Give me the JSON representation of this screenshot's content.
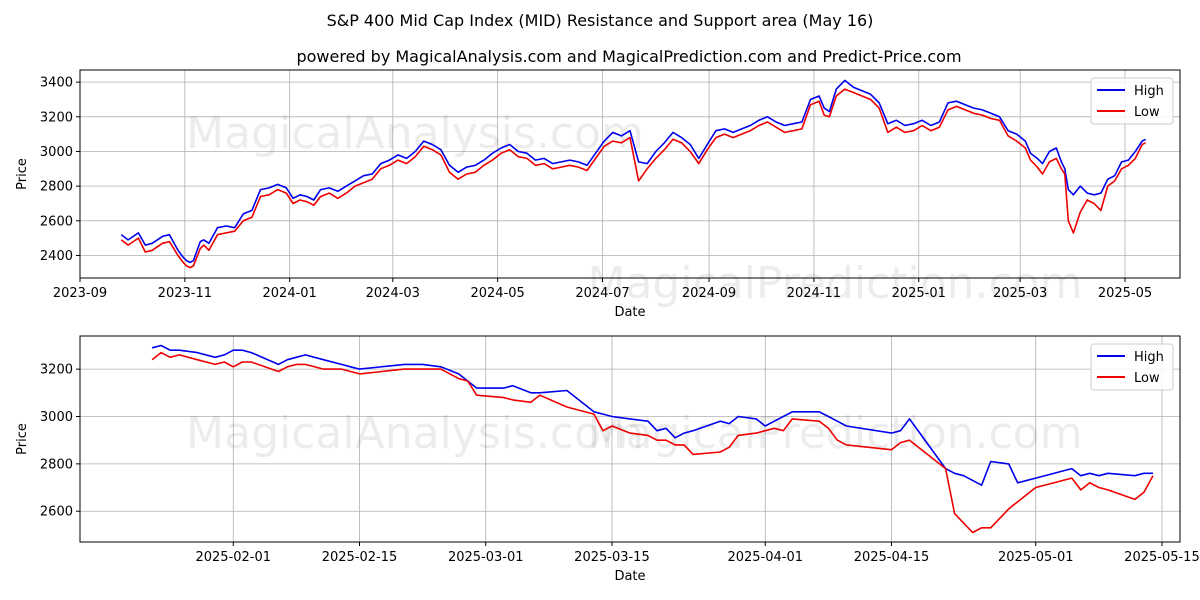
{
  "header": {
    "title": "S&P 400 Mid Cap Index (MID) Resistance and Support area (May 16)",
    "subtitle": "powered by MagicalAnalysis.com and MagicalPrediction.com and Predict-Price.com"
  },
  "watermarks": [
    "MagicalAnalysis.com",
    "MagicalPrediction.com"
  ],
  "colors": {
    "high": "#0000ee",
    "low": "#ee0000",
    "grid": "#b0b0b0"
  },
  "chart_data": [
    {
      "type": "line",
      "xlabel": "Date",
      "ylabel": "Price",
      "xlim": [
        0,
        640
      ],
      "ylim": [
        2270,
        3470
      ],
      "grid": true,
      "legend": "top-right",
      "xticks": [
        {
          "v": 0,
          "label": "2023-09"
        },
        {
          "v": 61,
          "label": "2023-11"
        },
        {
          "v": 122,
          "label": "2024-01"
        },
        {
          "v": 182,
          "label": "2024-03"
        },
        {
          "v": 243,
          "label": "2024-05"
        },
        {
          "v": 304,
          "label": "2024-07"
        },
        {
          "v": 366,
          "label": "2024-09"
        },
        {
          "v": 427,
          "label": "2024-11"
        },
        {
          "v": 488,
          "label": "2025-01"
        },
        {
          "v": 547,
          "label": "2025-03"
        },
        {
          "v": 608,
          "label": "2025-05"
        }
      ],
      "yticks": [
        2400,
        2600,
        2800,
        3000,
        3200,
        3400
      ],
      "series": [
        {
          "name": "High",
          "x": [
            24,
            28,
            34,
            38,
            42,
            48,
            52,
            57,
            60,
            62,
            64,
            66,
            70,
            72,
            75,
            80,
            85,
            90,
            95,
            100,
            105,
            110,
            115,
            120,
            124,
            128,
            132,
            136,
            140,
            145,
            150,
            155,
            160,
            165,
            170,
            175,
            180,
            185,
            190,
            195,
            200,
            205,
            210,
            215,
            220,
            225,
            230,
            235,
            240,
            245,
            250,
            255,
            260,
            265,
            270,
            275,
            280,
            285,
            290,
            295,
            300,
            305,
            310,
            315,
            320,
            325,
            330,
            335,
            340,
            345,
            350,
            355,
            360,
            365,
            370,
            375,
            380,
            385,
            390,
            395,
            400,
            405,
            410,
            415,
            420,
            425,
            430,
            433,
            436,
            440,
            445,
            450,
            455,
            460,
            465,
            470,
            475,
            480,
            485,
            490,
            495,
            500,
            505,
            510,
            515,
            520,
            525,
            530,
            535,
            540,
            545,
            550,
            553,
            557,
            560,
            564,
            568,
            571,
            573,
            575,
            578,
            582,
            586,
            590,
            594,
            598,
            602,
            606,
            610,
            614,
            618,
            620
          ],
          "values": [
            2520,
            2490,
            2530,
            2460,
            2470,
            2510,
            2520,
            2430,
            2390,
            2370,
            2360,
            2370,
            2480,
            2490,
            2470,
            2560,
            2570,
            2560,
            2640,
            2660,
            2780,
            2790,
            2810,
            2790,
            2730,
            2750,
            2740,
            2720,
            2780,
            2790,
            2770,
            2800,
            2830,
            2860,
            2870,
            2930,
            2950,
            2980,
            2960,
            3000,
            3060,
            3040,
            3010,
            2920,
            2880,
            2910,
            2920,
            2950,
            2990,
            3020,
            3040,
            3000,
            2990,
            2950,
            2960,
            2930,
            2940,
            2950,
            2940,
            2920,
            2990,
            3060,
            3110,
            3090,
            3120,
            2940,
            2930,
            3000,
            3050,
            3110,
            3080,
            3040,
            2960,
            3040,
            3120,
            3130,
            3110,
            3130,
            3150,
            3180,
            3200,
            3170,
            3150,
            3160,
            3170,
            3300,
            3320,
            3250,
            3230,
            3360,
            3410,
            3370,
            3350,
            3330,
            3280,
            3160,
            3180,
            3150,
            3160,
            3180,
            3150,
            3170,
            3280,
            3290,
            3270,
            3250,
            3240,
            3220,
            3200,
            3120,
            3100,
            3060,
            2990,
            2960,
            2930,
            3000,
            3020,
            2940,
            2900,
            2780,
            2750,
            2800,
            2760,
            2750,
            2760,
            2840,
            2860,
            2940,
            2950,
            3000,
            3060,
            3070
          ]
        },
        {
          "name": "Low",
          "x": [
            24,
            28,
            34,
            38,
            42,
            48,
            52,
            57,
            60,
            62,
            64,
            66,
            70,
            72,
            75,
            80,
            85,
            90,
            95,
            100,
            105,
            110,
            115,
            120,
            124,
            128,
            132,
            136,
            140,
            145,
            150,
            155,
            160,
            165,
            170,
            175,
            180,
            185,
            190,
            195,
            200,
            205,
            210,
            215,
            220,
            225,
            230,
            235,
            240,
            245,
            250,
            255,
            260,
            265,
            270,
            275,
            280,
            285,
            290,
            295,
            300,
            305,
            310,
            315,
            320,
            325,
            330,
            335,
            340,
            345,
            350,
            355,
            360,
            365,
            370,
            375,
            380,
            385,
            390,
            395,
            400,
            405,
            410,
            415,
            420,
            425,
            430,
            433,
            436,
            440,
            445,
            450,
            455,
            460,
            465,
            470,
            475,
            480,
            485,
            490,
            495,
            500,
            505,
            510,
            515,
            520,
            525,
            530,
            535,
            540,
            545,
            550,
            553,
            557,
            560,
            564,
            568,
            571,
            573,
            575,
            578,
            582,
            586,
            590,
            594,
            598,
            602,
            606,
            610,
            614,
            618,
            620
          ],
          "values": [
            2490,
            2460,
            2500,
            2420,
            2430,
            2470,
            2480,
            2400,
            2360,
            2340,
            2330,
            2340,
            2440,
            2460,
            2430,
            2520,
            2530,
            2540,
            2600,
            2620,
            2740,
            2750,
            2780,
            2760,
            2700,
            2720,
            2710,
            2690,
            2740,
            2760,
            2730,
            2760,
            2800,
            2820,
            2840,
            2900,
            2920,
            2950,
            2930,
            2970,
            3030,
            3010,
            2980,
            2880,
            2840,
            2870,
            2880,
            2920,
            2950,
            2990,
            3010,
            2970,
            2960,
            2920,
            2930,
            2900,
            2910,
            2920,
            2910,
            2890,
            2960,
            3030,
            3060,
            3050,
            3080,
            2830,
            2900,
            2960,
            3010,
            3070,
            3050,
            3000,
            2930,
            3010,
            3080,
            3100,
            3080,
            3100,
            3120,
            3150,
            3170,
            3140,
            3110,
            3120,
            3130,
            3270,
            3290,
            3210,
            3200,
            3320,
            3360,
            3340,
            3320,
            3300,
            3250,
            3110,
            3140,
            3110,
            3120,
            3150,
            3120,
            3140,
            3240,
            3260,
            3240,
            3220,
            3210,
            3190,
            3180,
            3090,
            3060,
            3020,
            2950,
            2910,
            2870,
            2940,
            2960,
            2900,
            2870,
            2600,
            2530,
            2650,
            2720,
            2700,
            2660,
            2800,
            2830,
            2900,
            2920,
            2960,
            3040,
            3050
          ]
        }
      ]
    },
    {
      "type": "line",
      "xlabel": "Date",
      "ylabel": "Price",
      "xlim": [
        -8,
        114
      ],
      "ylim": [
        2470,
        3340
      ],
      "grid": true,
      "legend": "top-right",
      "xticks": [
        {
          "v": 9,
          "label": "2025-02-01"
        },
        {
          "v": 23,
          "label": "2025-02-15"
        },
        {
          "v": 37,
          "label": "2025-03-01"
        },
        {
          "v": 51,
          "label": "2025-03-15"
        },
        {
          "v": 68,
          "label": "2025-04-01"
        },
        {
          "v": 82,
          "label": "2025-04-15"
        },
        {
          "v": 98,
          "label": "2025-05-01"
        },
        {
          "v": 112,
          "label": "2025-05-15"
        }
      ],
      "yticks": [
        2600,
        2800,
        3000,
        3200
      ],
      "series": [
        {
          "name": "High",
          "x": [
            0,
            1,
            2,
            3,
            5,
            7,
            8,
            9,
            10,
            11,
            14,
            15,
            16,
            17,
            19,
            21,
            22,
            23,
            28,
            30,
            32,
            34,
            35,
            36,
            39,
            40,
            42,
            43,
            46,
            49,
            50,
            51,
            53,
            55,
            56,
            57,
            58,
            59,
            60,
            63,
            64,
            65,
            67,
            68,
            69,
            70,
            71,
            74,
            75,
            76,
            77,
            82,
            83,
            84,
            88,
            89,
            90,
            91,
            92,
            93,
            95,
            96,
            98,
            102,
            103,
            104,
            105,
            106,
            109,
            110,
            111
          ],
          "values": [
            3290,
            3300,
            3280,
            3280,
            3270,
            3250,
            3260,
            3280,
            3280,
            3270,
            3220,
            3240,
            3250,
            3260,
            3240,
            3220,
            3210,
            3200,
            3220,
            3220,
            3210,
            3180,
            3150,
            3120,
            3120,
            3130,
            3100,
            3100,
            3110,
            3020,
            3010,
            3000,
            2990,
            2980,
            2940,
            2950,
            2910,
            2930,
            2940,
            2980,
            2970,
            3000,
            2990,
            2960,
            2980,
            3000,
            3020,
            3020,
            3000,
            2980,
            2960,
            2930,
            2940,
            2990,
            2780,
            2760,
            2750,
            2730,
            2710,
            2810,
            2800,
            2720,
            2740,
            2780,
            2750,
            2760,
            2750,
            2760,
            2750,
            2760,
            2760
          ]
        },
        {
          "name": "Low",
          "x": [
            0,
            1,
            2,
            3,
            5,
            7,
            8,
            9,
            10,
            11,
            14,
            15,
            16,
            17,
            19,
            21,
            22,
            23,
            28,
            30,
            32,
            34,
            35,
            36,
            39,
            40,
            42,
            43,
            46,
            49,
            50,
            51,
            53,
            55,
            56,
            57,
            58,
            59,
            60,
            63,
            64,
            65,
            67,
            68,
            69,
            70,
            71,
            74,
            75,
            76,
            77,
            82,
            83,
            84,
            88,
            89,
            90,
            91,
            92,
            93,
            95,
            96,
            98,
            102,
            103,
            104,
            105,
            106,
            109,
            110,
            111
          ],
          "values": [
            3240,
            3270,
            3250,
            3260,
            3240,
            3220,
            3230,
            3210,
            3230,
            3230,
            3190,
            3210,
            3220,
            3220,
            3200,
            3200,
            3190,
            3180,
            3200,
            3200,
            3200,
            3160,
            3150,
            3090,
            3080,
            3070,
            3060,
            3090,
            3040,
            3010,
            2940,
            2960,
            2930,
            2920,
            2900,
            2900,
            2880,
            2880,
            2840,
            2850,
            2870,
            2920,
            2930,
            2940,
            2950,
            2940,
            2990,
            2980,
            2950,
            2900,
            2880,
            2860,
            2890,
            2900,
            2780,
            2590,
            2550,
            2510,
            2530,
            2530,
            2610,
            2640,
            2700,
            2740,
            2690,
            2720,
            2700,
            2690,
            2650,
            2680,
            2750
          ]
        }
      ]
    }
  ]
}
